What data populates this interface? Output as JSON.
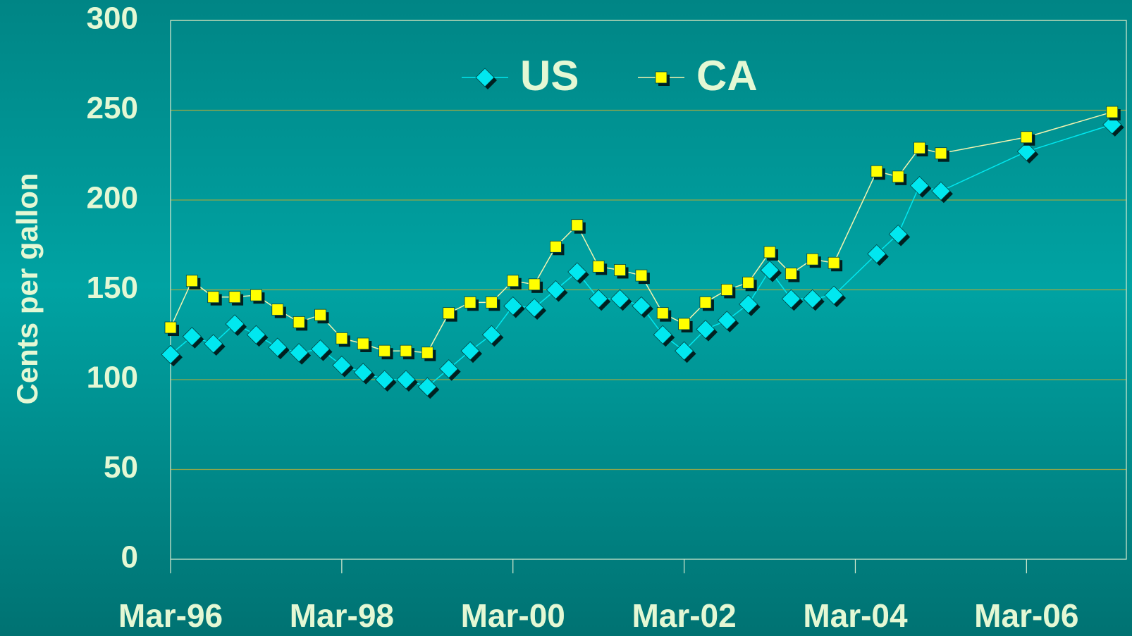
{
  "chart_data": {
    "type": "line",
    "ylabel": "Cents per gallon",
    "x": [
      "Mar-96",
      "Jun-96",
      "Sep-96",
      "Dec-96",
      "Mar-97",
      "Jun-97",
      "Sep-97",
      "Dec-97",
      "Mar-98",
      "Jun-98",
      "Sep-98",
      "Dec-98",
      "Mar-99",
      "Jun-99",
      "Sep-99",
      "Dec-99",
      "Mar-00",
      "Jun-00",
      "Sep-00",
      "Dec-00",
      "Mar-01",
      "Jun-01",
      "Sep-01",
      "Dec-01",
      "Mar-02",
      "Jun-02",
      "Sep-02",
      "Dec-02",
      "Mar-03",
      "Jun-03",
      "Sep-03",
      "Dec-03",
      "Jun-04",
      "Sep-04",
      "Dec-04",
      "Mar-05",
      "Mar-06",
      "Mar-07"
    ],
    "series": [
      {
        "name": "US",
        "color": "#00e8f0",
        "marker": "diamond",
        "values": [
          114,
          124,
          120,
          131,
          125,
          118,
          115,
          117,
          108,
          104,
          100,
          100,
          96,
          106,
          116,
          125,
          141,
          140,
          150,
          160,
          145,
          145,
          141,
          125,
          116,
          128,
          133,
          142,
          161,
          145,
          145,
          147,
          170,
          181,
          208,
          205,
          227,
          242
        ]
      },
      {
        "name": "CA",
        "color": "#ffff00",
        "marker": "square",
        "values": [
          129,
          155,
          146,
          146,
          147,
          139,
          132,
          136,
          123,
          120,
          116,
          116,
          115,
          137,
          143,
          143,
          155,
          153,
          174,
          186,
          163,
          161,
          158,
          137,
          131,
          143,
          150,
          154,
          171,
          159,
          167,
          165,
          216,
          213,
          229,
          226,
          235,
          249
        ]
      }
    ],
    "xlim": [
      "Mar-96",
      "May-07"
    ],
    "xticks": [
      "Mar-96",
      "Mar-98",
      "Mar-00",
      "Mar-02",
      "Mar-04",
      "Mar-06"
    ],
    "ylim": [
      0,
      300
    ],
    "yticks": [
      0,
      50,
      100,
      150,
      200,
      250,
      300
    ],
    "grid": true,
    "legend": "top"
  }
}
